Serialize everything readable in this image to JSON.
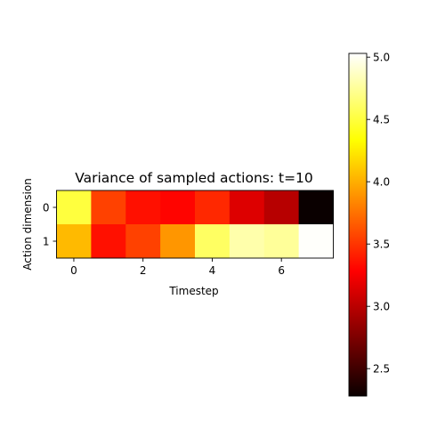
{
  "chart_data": {
    "type": "heatmap",
    "title": "Variance of sampled actions: t=10",
    "xlabel": "Timestep",
    "ylabel": "Action dimension",
    "x": [
      0,
      1,
      2,
      3,
      4,
      5,
      6,
      7
    ],
    "y": [
      0,
      1
    ],
    "xticks": [
      0,
      2,
      4,
      6
    ],
    "yticks": [
      0,
      1
    ],
    "values": [
      [
        4.5,
        3.55,
        3.35,
        3.3,
        3.45,
        3.15,
        3.0,
        2.3
      ],
      [
        4.05,
        3.35,
        3.55,
        3.9,
        4.6,
        4.8,
        4.75,
        5.02
      ]
    ],
    "colormap": "hot",
    "colorbar": {
      "min": 2.28,
      "max": 5.03,
      "ticks": [
        2.5,
        3.0,
        3.5,
        4.0,
        4.5,
        5.0
      ],
      "tick_labels": [
        "2.5",
        "3.0",
        "3.5",
        "4.0",
        "4.5",
        "5.0"
      ]
    }
  }
}
